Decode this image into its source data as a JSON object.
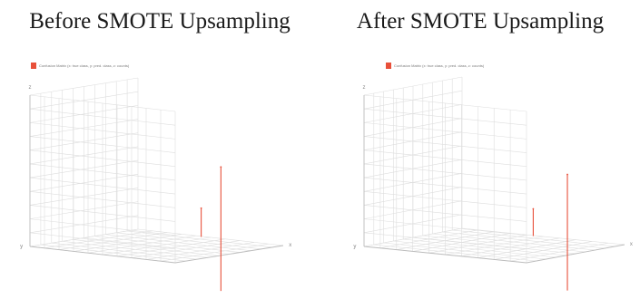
{
  "colors": {
    "bar": "#e8503a",
    "grid": "#dedede",
    "axis": "#bdbdbd"
  },
  "chart_data": [
    {
      "type": "bar",
      "subtype": "3d-bar",
      "title": "Before SMOTE Upsampling",
      "legend": [
        "Confusion Matrix (x: true class, y: pred. class, z: counts)"
      ],
      "legend_placement": "top-left",
      "xlabel": "x",
      "ylabel": "y",
      "zlabel": "z",
      "grid": true,
      "series": [
        {
          "name": "Confusion Matrix (x: true class, y: pred. class, z: counts)",
          "values": [
            {
              "x": 0,
              "y": 0,
              "z": 110
            },
            {
              "x": 1,
              "y": 1,
              "z": 36
            }
          ]
        }
      ]
    },
    {
      "type": "bar",
      "subtype": "3d-bar",
      "title": "After SMOTE Upsampling",
      "legend": [
        "Confusion Matrix (x: true class, y: pred. class, z: counts)"
      ],
      "legend_placement": "top-left",
      "xlabel": "x",
      "ylabel": "y",
      "zlabel": "z",
      "grid": true,
      "series": [
        {
          "name": "Confusion Matrix (x: true class, y: pred. class, z: counts)",
          "values": [
            {
              "x": 0,
              "y": 0,
              "z": 100
            },
            {
              "x": 1,
              "y": 1,
              "z": 34
            }
          ]
        }
      ]
    }
  ]
}
